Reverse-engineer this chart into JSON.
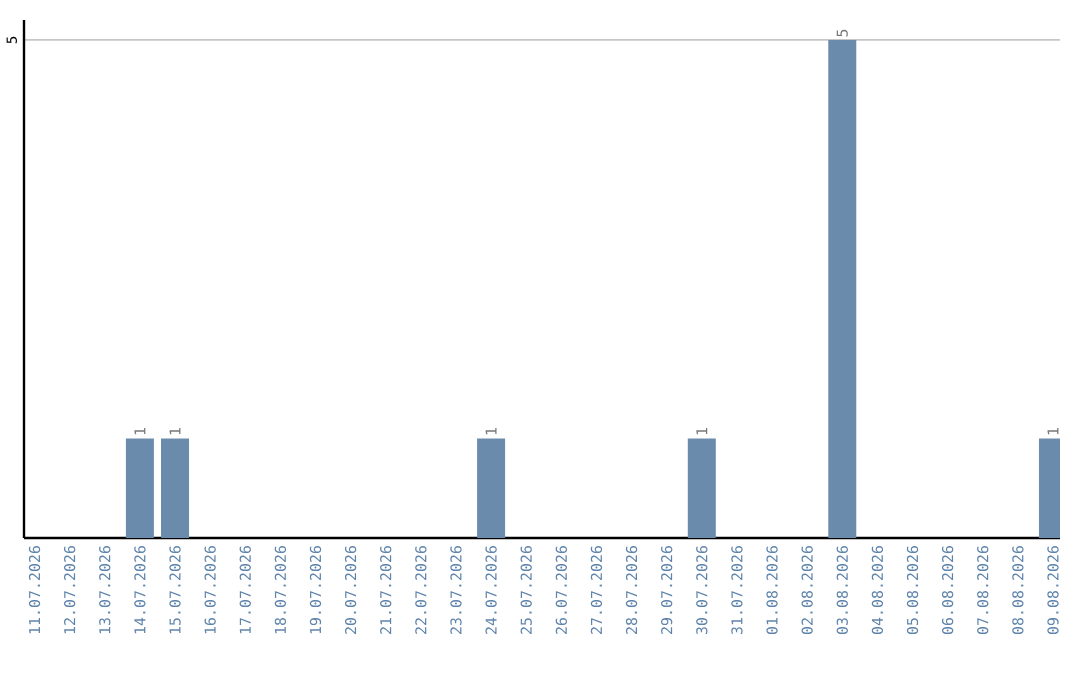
{
  "chart_data": {
    "type": "bar",
    "categories": [
      "11.07.2026",
      "12.07.2026",
      "13.07.2026",
      "14.07.2026",
      "15.07.2026",
      "16.07.2026",
      "17.07.2026",
      "18.07.2026",
      "19.07.2026",
      "20.07.2026",
      "21.07.2026",
      "22.07.2026",
      "23.07.2026",
      "24.07.2026",
      "25.07.2026",
      "26.07.2026",
      "27.07.2026",
      "28.07.2026",
      "29.07.2026",
      "30.07.2026",
      "31.07.2026",
      "01.08.2026",
      "02.08.2026",
      "03.08.2026",
      "04.08.2026",
      "05.08.2026",
      "06.08.2026",
      "07.08.2026",
      "08.08.2026",
      "09.08.2026"
    ],
    "values": [
      0,
      0,
      0,
      1,
      1,
      0,
      0,
      0,
      0,
      0,
      0,
      0,
      0,
      1,
      0,
      0,
      0,
      0,
      0,
      1,
      0,
      0,
      0,
      5,
      0,
      0,
      0,
      0,
      0,
      1
    ],
    "value_labels": [
      null,
      null,
      null,
      "1",
      "1",
      null,
      null,
      null,
      null,
      null,
      null,
      null,
      null,
      "1",
      null,
      null,
      null,
      null,
      null,
      "1",
      null,
      null,
      null,
      "5",
      null,
      null,
      null,
      null,
      null,
      "1"
    ],
    "color": "#6a8bab",
    "ylim": [
      0,
      5.2
    ],
    "yticks": [
      5
    ],
    "grid": "y"
  }
}
